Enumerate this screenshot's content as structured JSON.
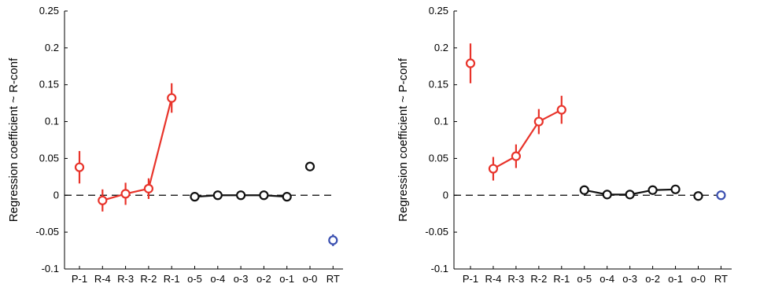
{
  "chart_data": [
    {
      "type": "line",
      "ylabel": "Regression coefficient ~ R-conf",
      "xlabel": "",
      "ylim": [
        -0.1,
        0.25
      ],
      "yticks": [
        "0.25",
        "0.2",
        "0.15",
        "0.1",
        "0.05",
        "0",
        "-0.05",
        "-0.1"
      ],
      "categories": [
        "P-1",
        "R-4",
        "R-3",
        "R-2",
        "R-1",
        "o-5",
        "o-4",
        "o-3",
        "o-2",
        "o-1",
        "o-0",
        "RT"
      ],
      "zero_line": "dashed",
      "grid": false,
      "series": [
        {
          "group": "P",
          "color": "#e8332a",
          "connected": false,
          "points": [
            {
              "x": "P-1",
              "y": 0.038,
              "err": 0.022
            }
          ]
        },
        {
          "group": "R",
          "color": "#e8332a",
          "connected": true,
          "points": [
            {
              "x": "R-4",
              "y": -0.007,
              "err": 0.015
            },
            {
              "x": "R-3",
              "y": 0.002,
              "err": 0.015
            },
            {
              "x": "R-2",
              "y": 0.009,
              "err": 0.014
            },
            {
              "x": "R-1",
              "y": 0.132,
              "err": 0.02
            }
          ]
        },
        {
          "group": "o",
          "color": "#111111",
          "connected": true,
          "points": [
            {
              "x": "o-5",
              "y": -0.002,
              "err": 0.004
            },
            {
              "x": "o-4",
              "y": 0.0,
              "err": 0.004
            },
            {
              "x": "o-3",
              "y": 0.0,
              "err": 0.004
            },
            {
              "x": "o-2",
              "y": 0.0,
              "err": 0.004
            },
            {
              "x": "o-1",
              "y": -0.002,
              "err": 0.004
            }
          ]
        },
        {
          "group": "o0",
          "color": "#111111",
          "connected": false,
          "points": [
            {
              "x": "o-0",
              "y": 0.039,
              "err": 0.005
            }
          ]
        },
        {
          "group": "RT",
          "color": "#3a4fb0",
          "connected": false,
          "points": [
            {
              "x": "RT",
              "y": -0.061,
              "err": 0.008
            }
          ]
        }
      ]
    },
    {
      "type": "line",
      "ylabel": "Regression coefficient ~ P-conf",
      "xlabel": "",
      "ylim": [
        -0.1,
        0.25
      ],
      "yticks": [
        "0.25",
        "0.2",
        "0.15",
        "0.1",
        "0.05",
        "0",
        "-0.05",
        "-0.1"
      ],
      "categories": [
        "P-1",
        "R-4",
        "R-3",
        "R-2",
        "R-1",
        "o-5",
        "o-4",
        "o-3",
        "o-2",
        "o-1",
        "o-0",
        "RT"
      ],
      "zero_line": "dashed",
      "grid": false,
      "series": [
        {
          "group": "P",
          "color": "#e8332a",
          "connected": false,
          "points": [
            {
              "x": "P-1",
              "y": 0.179,
              "err": 0.027
            }
          ]
        },
        {
          "group": "R",
          "color": "#e8332a",
          "connected": true,
          "points": [
            {
              "x": "R-4",
              "y": 0.036,
              "err": 0.016
            },
            {
              "x": "R-3",
              "y": 0.053,
              "err": 0.016
            },
            {
              "x": "R-2",
              "y": 0.1,
              "err": 0.017
            },
            {
              "x": "R-1",
              "y": 0.116,
              "err": 0.019
            }
          ]
        },
        {
          "group": "o",
          "color": "#111111",
          "connected": true,
          "points": [
            {
              "x": "o-5",
              "y": 0.007,
              "err": 0.004
            },
            {
              "x": "o-4",
              "y": 0.001,
              "err": 0.004
            },
            {
              "x": "o-3",
              "y": 0.001,
              "err": 0.004
            },
            {
              "x": "o-2",
              "y": 0.007,
              "err": 0.004
            },
            {
              "x": "o-1",
              "y": 0.008,
              "err": 0.004
            }
          ]
        },
        {
          "group": "o0",
          "color": "#111111",
          "connected": false,
          "points": [
            {
              "x": "o-0",
              "y": -0.001,
              "err": 0.004
            }
          ]
        },
        {
          "group": "RT",
          "color": "#3a4fb0",
          "connected": false,
          "points": [
            {
              "x": "RT",
              "y": 0.0,
              "err": 0.003
            }
          ]
        }
      ]
    }
  ]
}
